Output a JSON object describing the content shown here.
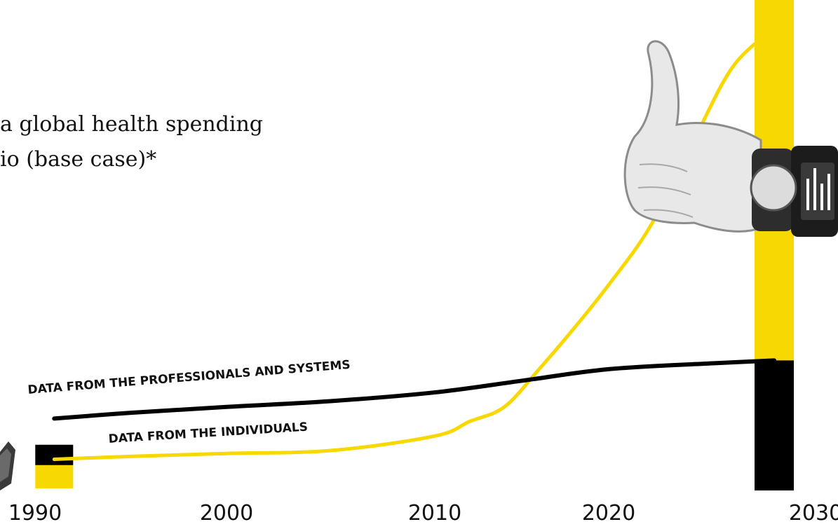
{
  "title": {
    "line1": "a global health spending",
    "line2": "io (base case)*"
  },
  "chart_data": {
    "type": "line",
    "xlim": [
      1990,
      2030
    ],
    "x_ticks": [
      "1990",
      "2000",
      "2010",
      "2020",
      "2030"
    ],
    "grid": false,
    "legend": "none",
    "series": [
      {
        "name": "DATA FROM THE PROFESSIONALS AND SYSTEMS",
        "color": "#000000",
        "points": [
          [
            1991,
            24
          ],
          [
            1995,
            26
          ],
          [
            2000,
            28
          ],
          [
            2005,
            30
          ],
          [
            2010,
            33
          ],
          [
            2015,
            37
          ],
          [
            2020,
            41
          ],
          [
            2025,
            43
          ],
          [
            2028,
            44
          ]
        ]
      },
      {
        "name": "DATA FROM THE INDIVIDUALS",
        "color": "#f7d800",
        "points": [
          [
            1991,
            10
          ],
          [
            1995,
            11
          ],
          [
            2000,
            12
          ],
          [
            2005,
            13
          ],
          [
            2010,
            18
          ],
          [
            2012,
            23
          ],
          [
            2014,
            28
          ],
          [
            2016,
            41
          ],
          [
            2018,
            55
          ],
          [
            2020,
            70
          ],
          [
            2022,
            90
          ],
          [
            2024,
            118
          ],
          [
            2026,
            145
          ],
          [
            2028,
            158
          ]
        ]
      }
    ],
    "end_bars": [
      {
        "x": 1991,
        "black": 15,
        "yellow": 8
      },
      {
        "x": 2028,
        "black": 44,
        "yellow": 100
      }
    ],
    "images": [
      {
        "name": "thumbs-up-hand-with-smartwatch",
        "position": "right-top"
      },
      {
        "name": "wearable-device",
        "position": "left-bottom"
      }
    ]
  }
}
